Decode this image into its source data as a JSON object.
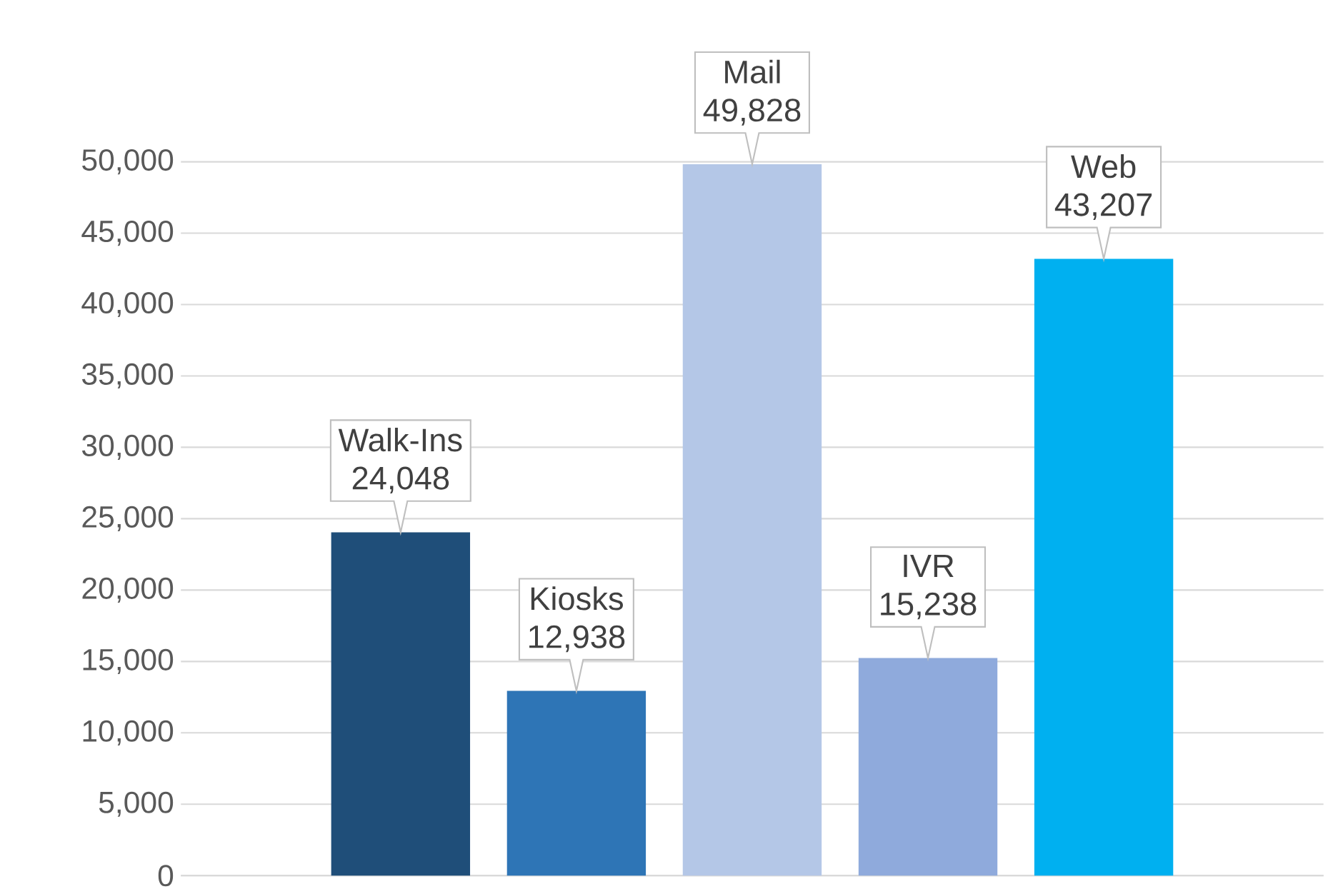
{
  "chart_data": {
    "type": "bar",
    "categories": [
      "Walk-Ins",
      "Kiosks",
      "Mail",
      "IVR",
      "Web"
    ],
    "values": [
      24048,
      12938,
      49828,
      15238,
      43207
    ],
    "colors": [
      "#1f4e79",
      "#2e75b6",
      "#b4c7e7",
      "#8faadc",
      "#00b0f0"
    ],
    "ylim": [
      0,
      50000
    ],
    "yticks": [
      {
        "value": 0,
        "label": "0"
      },
      {
        "value": 5000,
        "label": "5,000"
      },
      {
        "value": 10000,
        "label": "10,000"
      },
      {
        "value": 15000,
        "label": "15,000"
      },
      {
        "value": 20000,
        "label": "20,000"
      },
      {
        "value": 25000,
        "label": "25,000"
      },
      {
        "value": 30000,
        "label": "30,000"
      },
      {
        "value": 35000,
        "label": "35,000"
      },
      {
        "value": 40000,
        "label": "40,000"
      },
      {
        "value": 45000,
        "label": "45,000"
      },
      {
        "value": 50000,
        "label": "50,000"
      }
    ],
    "grid": "y",
    "tick_labels": "y",
    "value_labels": [
      "24,048",
      "12,938",
      "49,828",
      "15,238",
      "43,207"
    ]
  }
}
